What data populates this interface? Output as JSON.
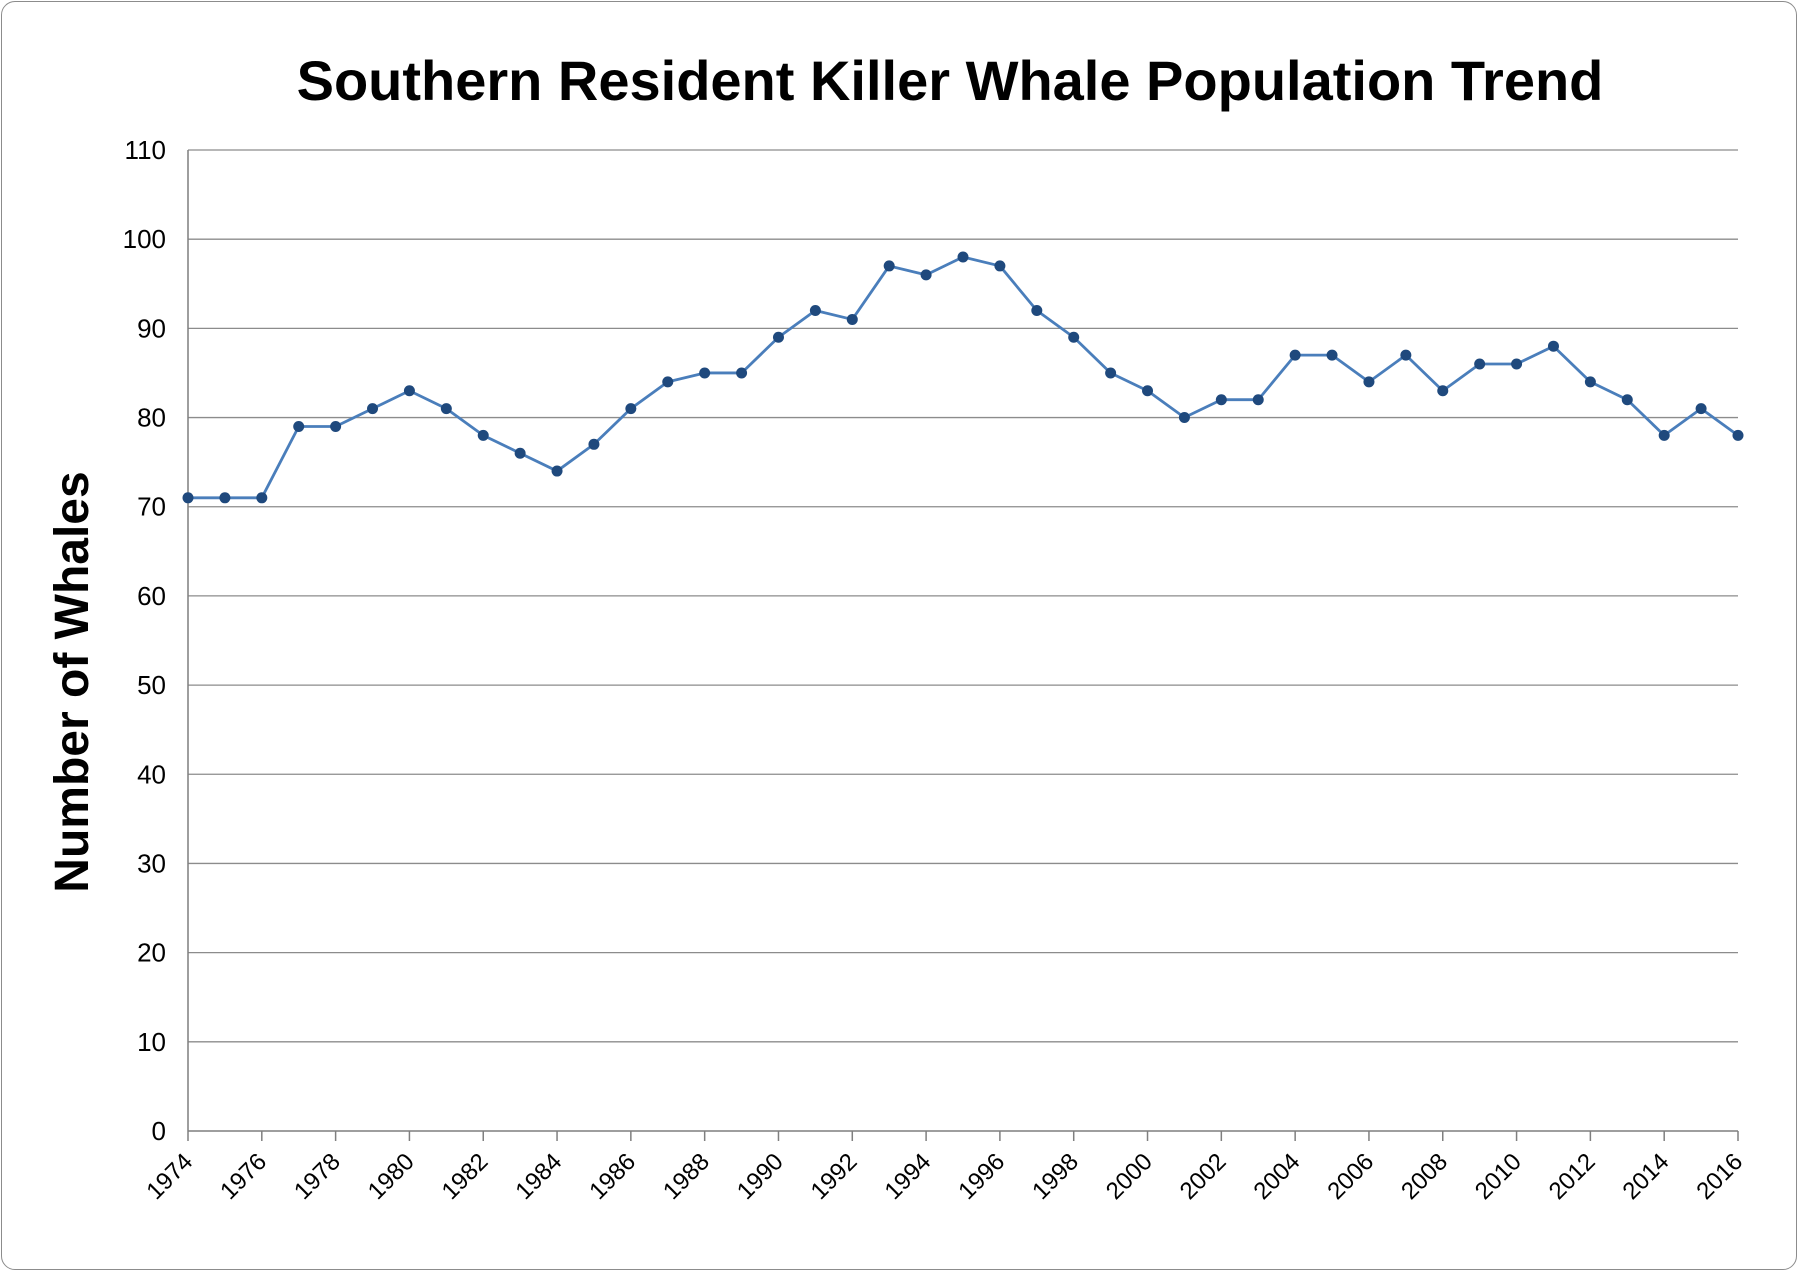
{
  "chart_data": {
    "type": "line",
    "title": "Southern Resident Killer Whale Population Trend",
    "xlabel": "",
    "ylabel": "Number of Whales",
    "ylim": [
      0,
      110
    ],
    "yticks": [
      0,
      10,
      20,
      30,
      40,
      50,
      60,
      70,
      80,
      90,
      100,
      110
    ],
    "xlim": [
      1974,
      2016
    ],
    "xticks": [
      1974,
      1976,
      1978,
      1980,
      1982,
      1984,
      1986,
      1988,
      1990,
      1992,
      1994,
      1996,
      1998,
      2000,
      2002,
      2004,
      2006,
      2008,
      2010,
      2012,
      2014,
      2016
    ],
    "grid": true,
    "legend": "none",
    "x": [
      1974,
      1975,
      1976,
      1977,
      1978,
      1979,
      1980,
      1981,
      1982,
      1983,
      1984,
      1985,
      1986,
      1987,
      1988,
      1989,
      1990,
      1991,
      1992,
      1993,
      1994,
      1995,
      1996,
      1997,
      1998,
      1999,
      2000,
      2001,
      2002,
      2003,
      2004,
      2005,
      2006,
      2007,
      2008,
      2009,
      2010,
      2011,
      2012,
      2013,
      2014,
      2015,
      2016
    ],
    "series": [
      {
        "values": [
          71,
          71,
          71,
          79,
          79,
          81,
          83,
          81,
          78,
          76,
          74,
          77,
          81,
          84,
          85,
          85,
          89,
          92,
          91,
          97,
          96,
          98,
          97,
          92,
          89,
          85,
          83,
          80,
          82,
          82,
          87,
          87,
          84,
          87,
          83,
          86,
          86,
          88,
          84,
          82,
          78,
          81,
          78
        ],
        "line_color": "#4a7ebb",
        "marker_color": "#1f497d"
      }
    ]
  }
}
